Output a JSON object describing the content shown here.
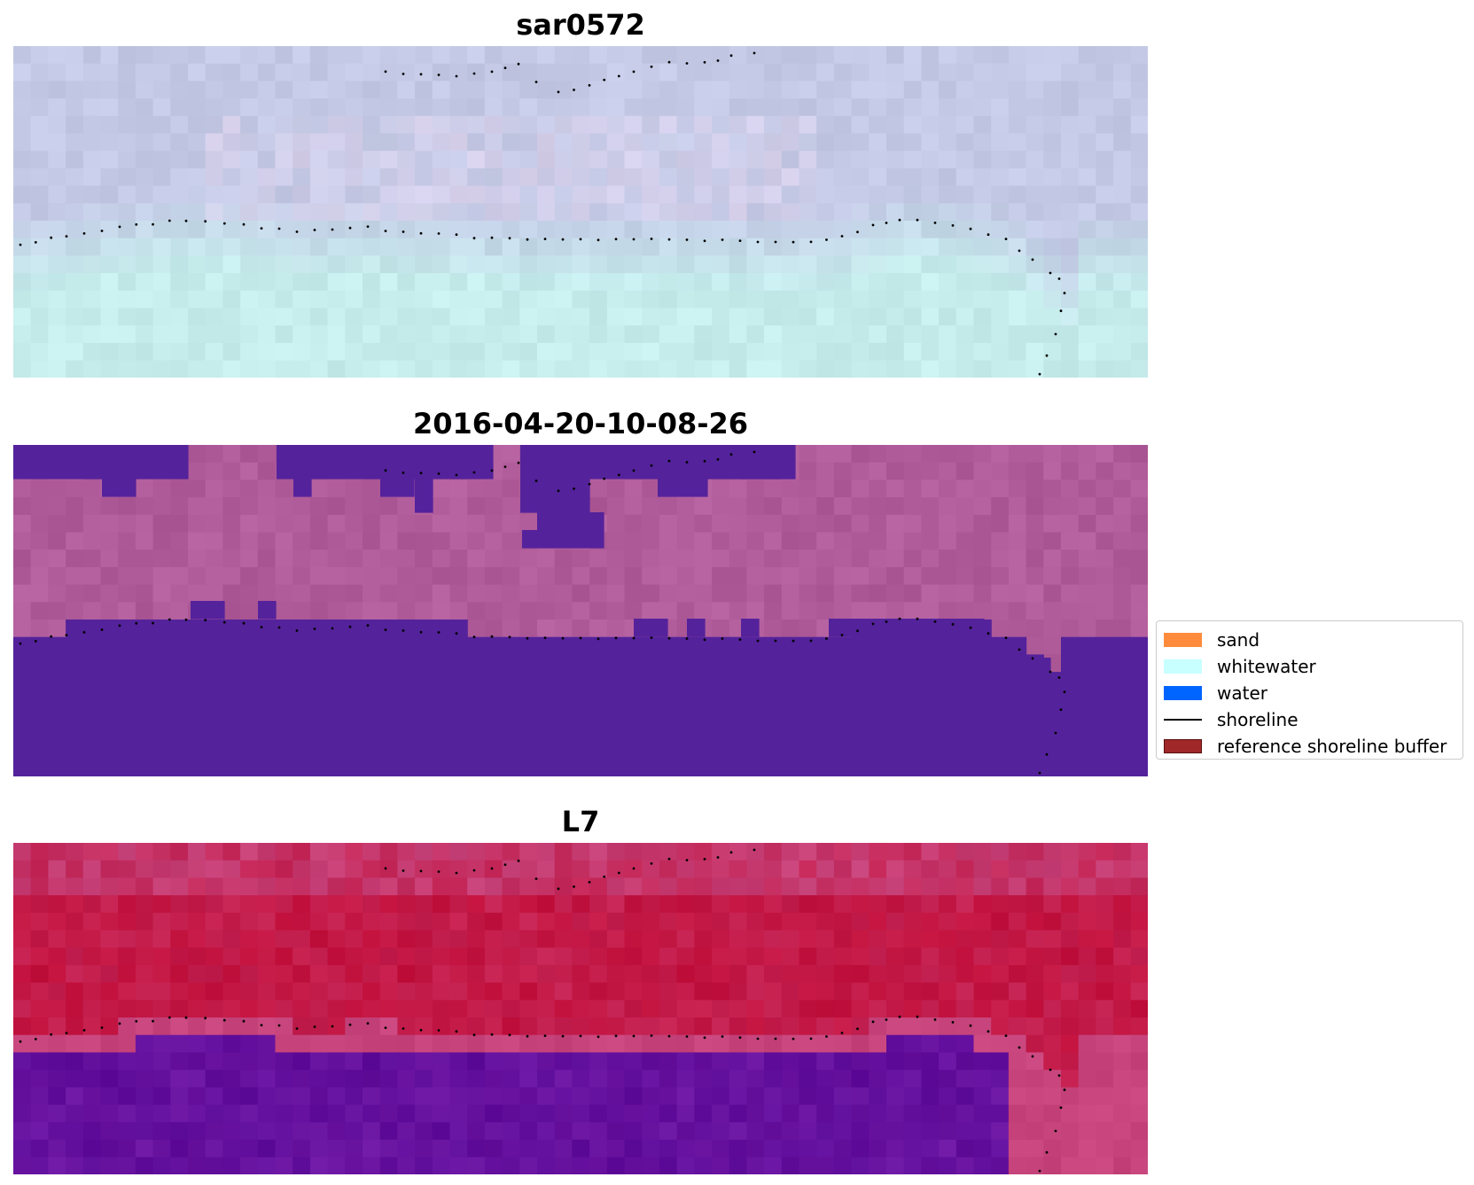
{
  "panels": [
    {
      "title": "sar0572",
      "kind": "sar"
    },
    {
      "title": "2016-04-20-10-08-26",
      "kind": "classified"
    },
    {
      "title": "L7",
      "kind": "optical"
    }
  ],
  "legend": {
    "items": [
      {
        "label": "sand",
        "color": "#ff8c3c",
        "type": "patch"
      },
      {
        "label": "whitewater",
        "color": "#c8ffff",
        "type": "patch"
      },
      {
        "label": "water",
        "color": "#0064ff",
        "type": "patch"
      },
      {
        "label": "shoreline",
        "color": "#000000",
        "type": "line"
      },
      {
        "label": "reference shoreline buffer",
        "color": "#a02828",
        "type": "patch"
      }
    ]
  },
  "colors": {
    "water_class": "#54229b",
    "classified_land": "#b05c9a",
    "sar_top": "#c4cae6",
    "sar_bottom": "#c6ecec",
    "optical_red": "#c2103c",
    "optical_purple": "#5e0c9a"
  }
}
